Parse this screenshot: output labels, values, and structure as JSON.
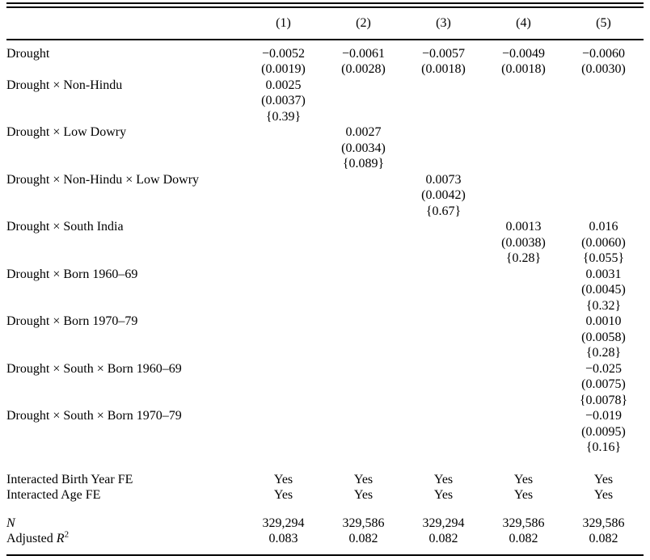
{
  "table": {
    "headers": [
      "(1)",
      "(2)",
      "(3)",
      "(4)",
      "(5)"
    ],
    "coef_rows": [
      {
        "label": "Drought",
        "cells": [
          [
            "−0.0052",
            "(0.0019)"
          ],
          [
            "−0.0061",
            "(0.0028)"
          ],
          [
            "−0.0057",
            "(0.0018)"
          ],
          [
            "−0.0049",
            "(0.0018)"
          ],
          [
            "−0.0060",
            "(0.0030)"
          ]
        ]
      },
      {
        "label": "Drought × Non-Hindu",
        "cells": [
          [
            "0.0025",
            "(0.0037)",
            "{0.39}"
          ],
          [],
          [],
          [],
          []
        ]
      },
      {
        "label": "Drought × Low Dowry",
        "cells": [
          [],
          [
            "0.0027",
            "(0.0034)",
            "{0.089}"
          ],
          [],
          [],
          []
        ]
      },
      {
        "label": "Drought × Non-Hindu × Low Dowry",
        "cells": [
          [],
          [],
          [
            "0.0073",
            "(0.0042)",
            "{0.67}"
          ],
          [],
          []
        ]
      },
      {
        "label": "Drought × South India",
        "cells": [
          [],
          [],
          [],
          [
            "0.0013",
            "(0.0038)",
            "{0.28}"
          ],
          [
            "0.016",
            "(0.0060)",
            "{0.055}"
          ]
        ]
      },
      {
        "label": "Drought × Born 1960–69",
        "cells": [
          [],
          [],
          [],
          [],
          [
            "0.0031",
            "(0.0045)",
            "{0.32}"
          ]
        ]
      },
      {
        "label": "Drought × Born 1970–79",
        "cells": [
          [],
          [],
          [],
          [],
          [
            "0.0010",
            "(0.0058)",
            "{0.28}"
          ]
        ]
      },
      {
        "label": "Drought × South × Born 1960–69",
        "cells": [
          [],
          [],
          [],
          [],
          [
            "−0.025",
            "(0.0075)",
            "{0.0078}"
          ]
        ]
      },
      {
        "label": "Drought × South × Born 1970–79",
        "cells": [
          [],
          [],
          [],
          [],
          [
            "−0.019",
            "(0.0095)",
            "{0.16}"
          ]
        ]
      }
    ],
    "fe_rows": [
      {
        "label": "Interacted Birth Year FE",
        "values": [
          "Yes",
          "Yes",
          "Yes",
          "Yes",
          "Yes"
        ]
      },
      {
        "label": "Interacted Age FE",
        "values": [
          "Yes",
          "Yes",
          "Yes",
          "Yes",
          "Yes"
        ]
      }
    ],
    "stat_rows": [
      {
        "label_plain": "",
        "label_math": "N",
        "label_sup": "",
        "values": [
          "329,294",
          "329,586",
          "329,294",
          "329,586",
          "329,586"
        ]
      },
      {
        "label_plain": "Adjusted ",
        "label_math": "R",
        "label_sup": "2",
        "values": [
          "0.083",
          "0.082",
          "0.082",
          "0.082",
          "0.082"
        ]
      }
    ]
  }
}
